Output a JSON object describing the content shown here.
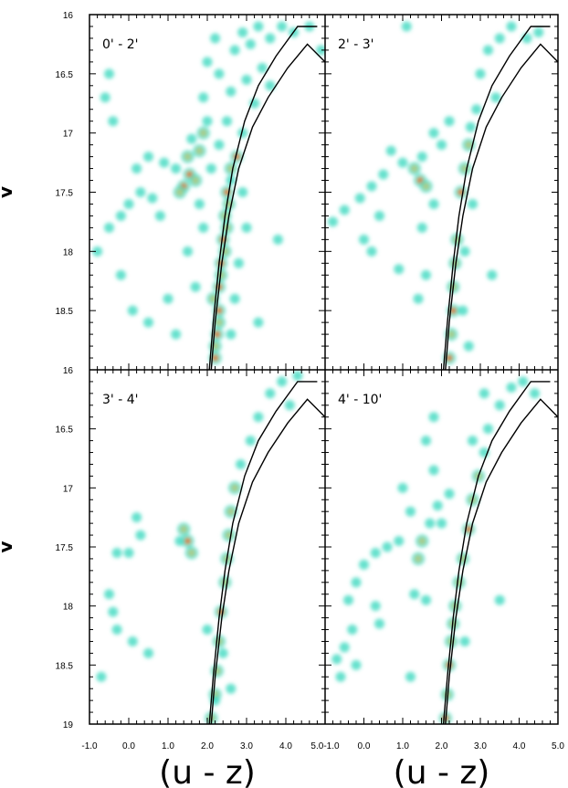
{
  "chart_data": {
    "type": "scatter",
    "subtype": "density color-magnitude diagram, 2x2 panels",
    "xlabel": "(u - z)",
    "ylabel": "v",
    "xlim": [
      -1.0,
      5.0
    ],
    "ylim": [
      19.0,
      16.0
    ],
    "x_ticks": [
      "-1.0",
      "0.0",
      "1.0",
      "2.0",
      "3.0",
      "4.0",
      "5.0"
    ],
    "x_ticks_right_first": "5.0-1.0",
    "y_ticks_top": [
      "16",
      "16.5",
      "17",
      "17.5",
      "18",
      "18.5"
    ],
    "y_ticks_bottom": [
      "16",
      "16.5",
      "17",
      "17.5",
      "18",
      "18.5",
      "19"
    ],
    "colors": {
      "low_density": "#3fd9c0",
      "mid_density": "#b7c87a",
      "high_density": "#e0641f",
      "isochrone": "#000000"
    },
    "isochrones": [
      {
        "points": [
          [
            2.05,
            19.0
          ],
          [
            2.15,
            18.6
          ],
          [
            2.3,
            18.1
          ],
          [
            2.45,
            17.7
          ],
          [
            2.65,
            17.3
          ],
          [
            2.95,
            16.9
          ],
          [
            3.3,
            16.6
          ],
          [
            3.75,
            16.35
          ],
          [
            4.3,
            16.1
          ],
          [
            4.8,
            16.1
          ]
        ]
      },
      {
        "points": [
          [
            2.1,
            19.0
          ],
          [
            2.2,
            18.6
          ],
          [
            2.37,
            18.1
          ],
          [
            2.55,
            17.7
          ],
          [
            2.8,
            17.3
          ],
          [
            3.15,
            16.95
          ],
          [
            3.55,
            16.7
          ],
          [
            4.05,
            16.45
          ],
          [
            4.55,
            16.25
          ],
          [
            5.0,
            16.4
          ]
        ]
      }
    ],
    "panels": [
      {
        "label": "0' - 2'",
        "points": [
          [
            2.2,
            18.9,
            3
          ],
          [
            2.25,
            18.7,
            3
          ],
          [
            2.3,
            18.5,
            3
          ],
          [
            2.3,
            18.3,
            3
          ],
          [
            2.35,
            18.1,
            3
          ],
          [
            2.4,
            17.9,
            3
          ],
          [
            2.45,
            17.7,
            2
          ],
          [
            2.5,
            17.5,
            3
          ],
          [
            2.6,
            17.3,
            2
          ],
          [
            2.75,
            17.2,
            3
          ],
          [
            2.2,
            18.8,
            2
          ],
          [
            2.3,
            18.6,
            2
          ],
          [
            2.15,
            18.4,
            2
          ],
          [
            2.35,
            18.2,
            2
          ],
          [
            2.45,
            18.0,
            2
          ],
          [
            2.5,
            17.8,
            2
          ],
          [
            2.55,
            17.6,
            2
          ],
          [
            2.6,
            17.4,
            1
          ],
          [
            1.4,
            17.45,
            3
          ],
          [
            1.55,
            17.35,
            3
          ],
          [
            1.7,
            17.4,
            2
          ],
          [
            1.3,
            17.5,
            2
          ],
          [
            1.5,
            17.2,
            2
          ],
          [
            1.8,
            17.15,
            2
          ],
          [
            1.9,
            17.0,
            2
          ],
          [
            2.0,
            16.9,
            1
          ],
          [
            1.6,
            17.05,
            1
          ],
          [
            1.2,
            17.3,
            1
          ],
          [
            0.2,
            17.3,
            1
          ],
          [
            0.3,
            17.5,
            1
          ],
          [
            0.0,
            17.6,
            1
          ],
          [
            -0.2,
            17.7,
            1
          ],
          [
            -0.5,
            17.8,
            1
          ],
          [
            -0.8,
            18.0,
            1
          ],
          [
            0.5,
            17.2,
            1
          ],
          [
            0.8,
            17.7,
            1
          ],
          [
            0.6,
            17.55,
            1
          ],
          [
            0.9,
            17.25,
            1
          ],
          [
            -0.2,
            18.2,
            1
          ],
          [
            0.1,
            18.5,
            1
          ],
          [
            0.5,
            18.6,
            1
          ],
          [
            1.2,
            18.7,
            1
          ],
          [
            1.0,
            18.4,
            1
          ],
          [
            1.5,
            18.0,
            1
          ],
          [
            1.7,
            18.3,
            1
          ],
          [
            1.9,
            17.8,
            1
          ],
          [
            1.8,
            17.6,
            1
          ],
          [
            2.7,
            16.3,
            1
          ],
          [
            2.9,
            16.15,
            1
          ],
          [
            3.1,
            16.25,
            1
          ],
          [
            3.3,
            16.1,
            1
          ],
          [
            3.6,
            16.2,
            1
          ],
          [
            3.9,
            16.1,
            1
          ],
          [
            4.2,
            16.15,
            1
          ],
          [
            4.6,
            16.1,
            1
          ],
          [
            4.9,
            16.3,
            1
          ],
          [
            3.4,
            16.45,
            1
          ],
          [
            3.0,
            16.55,
            1
          ],
          [
            2.6,
            16.65,
            1
          ],
          [
            2.3,
            16.5,
            1
          ],
          [
            2.0,
            16.4,
            1
          ],
          [
            2.2,
            16.2,
            1
          ],
          [
            1.9,
            16.7,
            1
          ],
          [
            2.5,
            16.9,
            1
          ],
          [
            3.2,
            16.75,
            1
          ],
          [
            3.6,
            16.6,
            1
          ],
          [
            2.9,
            17.0,
            1
          ],
          [
            2.3,
            17.1,
            1
          ],
          [
            2.1,
            17.3,
            1
          ],
          [
            2.9,
            17.5,
            1
          ],
          [
            3.0,
            17.8,
            1
          ],
          [
            2.8,
            18.1,
            1
          ],
          [
            2.7,
            18.4,
            1
          ],
          [
            2.6,
            18.7,
            1
          ],
          [
            -0.5,
            16.5,
            1
          ],
          [
            -0.6,
            16.7,
            1
          ],
          [
            -0.4,
            16.9,
            1
          ],
          [
            3.8,
            17.9,
            1
          ],
          [
            3.3,
            18.6,
            1
          ]
        ]
      },
      {
        "label": "2' - 3'",
        "points": [
          [
            2.2,
            18.9,
            3
          ],
          [
            2.25,
            18.7,
            2
          ],
          [
            2.3,
            18.5,
            3
          ],
          [
            2.3,
            18.3,
            2
          ],
          [
            2.35,
            18.1,
            2
          ],
          [
            2.4,
            17.9,
            2
          ],
          [
            2.5,
            17.5,
            3
          ],
          [
            2.6,
            17.3,
            2
          ],
          [
            2.7,
            17.1,
            2
          ],
          [
            2.75,
            16.95,
            1
          ],
          [
            1.45,
            17.4,
            3
          ],
          [
            1.6,
            17.45,
            2
          ],
          [
            1.3,
            17.3,
            2
          ],
          [
            1.5,
            17.2,
            1
          ],
          [
            1.0,
            17.25,
            1
          ],
          [
            0.7,
            17.15,
            1
          ],
          [
            0.5,
            17.35,
            1
          ],
          [
            0.2,
            17.45,
            1
          ],
          [
            -0.1,
            17.55,
            1
          ],
          [
            -0.5,
            17.65,
            1
          ],
          [
            -0.8,
            17.75,
            1
          ],
          [
            0.0,
            17.9,
            1
          ],
          [
            0.2,
            18.0,
            1
          ],
          [
            0.4,
            17.7,
            1
          ],
          [
            0.9,
            18.15,
            1
          ],
          [
            1.4,
            18.4,
            1
          ],
          [
            1.6,
            18.2,
            1
          ],
          [
            1.8,
            17.6,
            1
          ],
          [
            1.5,
            17.8,
            1
          ],
          [
            3.0,
            16.5,
            1
          ],
          [
            3.2,
            16.3,
            1
          ],
          [
            3.5,
            16.2,
            1
          ],
          [
            3.8,
            16.1,
            1
          ],
          [
            4.2,
            16.2,
            1
          ],
          [
            4.5,
            16.15,
            1
          ],
          [
            2.9,
            16.8,
            1
          ],
          [
            3.4,
            16.7,
            1
          ],
          [
            2.2,
            16.9,
            1
          ],
          [
            2.0,
            17.1,
            1
          ],
          [
            1.8,
            17.0,
            1
          ],
          [
            2.8,
            17.6,
            1
          ],
          [
            2.6,
            18.0,
            1
          ],
          [
            2.55,
            18.5,
            1
          ],
          [
            2.7,
            18.8,
            1
          ],
          [
            3.3,
            18.2,
            1
          ],
          [
            1.1,
            16.1,
            1
          ]
        ]
      },
      {
        "label": "3' - 4'",
        "points": [
          [
            2.1,
            18.95,
            2
          ],
          [
            2.2,
            18.75,
            2
          ],
          [
            2.25,
            18.55,
            2
          ],
          [
            2.3,
            18.3,
            2
          ],
          [
            2.35,
            18.05,
            3
          ],
          [
            2.45,
            17.8,
            2
          ],
          [
            2.5,
            17.6,
            2
          ],
          [
            2.55,
            17.4,
            2
          ],
          [
            2.6,
            17.2,
            2
          ],
          [
            2.7,
            17.0,
            2
          ],
          [
            2.85,
            16.8,
            1
          ],
          [
            1.5,
            17.45,
            3
          ],
          [
            1.4,
            17.35,
            2
          ],
          [
            1.6,
            17.55,
            2
          ],
          [
            1.3,
            17.45,
            1
          ],
          [
            0.2,
            17.25,
            1
          ],
          [
            0.3,
            17.4,
            1
          ],
          [
            0.0,
            17.55,
            1
          ],
          [
            -0.3,
            17.55,
            1
          ],
          [
            -0.5,
            17.9,
            1
          ],
          [
            -0.4,
            18.05,
            1
          ],
          [
            -0.3,
            18.2,
            1
          ],
          [
            0.1,
            18.3,
            1
          ],
          [
            0.5,
            18.4,
            1
          ],
          [
            -0.7,
            18.6,
            1
          ],
          [
            3.1,
            16.6,
            1
          ],
          [
            3.3,
            16.4,
            1
          ],
          [
            3.6,
            16.2,
            1
          ],
          [
            3.9,
            16.1,
            1
          ],
          [
            4.3,
            16.05,
            1
          ],
          [
            4.1,
            16.3,
            1
          ],
          [
            2.4,
            18.4,
            1
          ],
          [
            2.6,
            18.7,
            1
          ],
          [
            2.0,
            18.2,
            1
          ],
          [
            2.2,
            18.8,
            1
          ]
        ]
      },
      {
        "label": "4' - 10'",
        "points": [
          [
            2.1,
            18.95,
            3
          ],
          [
            2.15,
            18.75,
            2
          ],
          [
            2.2,
            18.5,
            3
          ],
          [
            2.25,
            18.3,
            2
          ],
          [
            2.3,
            18.15,
            2
          ],
          [
            2.35,
            18.0,
            2
          ],
          [
            2.45,
            17.8,
            2
          ],
          [
            2.55,
            17.6,
            2
          ],
          [
            2.7,
            17.35,
            3
          ],
          [
            2.8,
            17.1,
            2
          ],
          [
            2.95,
            16.9,
            2
          ],
          [
            3.1,
            16.7,
            1
          ],
          [
            1.5,
            17.45,
            2
          ],
          [
            1.4,
            17.6,
            2
          ],
          [
            1.7,
            17.3,
            1
          ],
          [
            1.9,
            17.15,
            1
          ],
          [
            1.2,
            17.2,
            1
          ],
          [
            1.0,
            17.0,
            1
          ],
          [
            1.8,
            16.85,
            1
          ],
          [
            2.0,
            17.3,
            1
          ],
          [
            2.2,
            17.05,
            1
          ],
          [
            1.6,
            16.6,
            1
          ],
          [
            0.9,
            17.45,
            1
          ],
          [
            0.6,
            17.5,
            1
          ],
          [
            0.3,
            17.55,
            1
          ],
          [
            0.0,
            17.65,
            1
          ],
          [
            -0.2,
            17.8,
            1
          ],
          [
            -0.4,
            17.95,
            1
          ],
          [
            -0.3,
            18.2,
            1
          ],
          [
            -0.5,
            18.35,
            1
          ],
          [
            -0.7,
            18.45,
            1
          ],
          [
            -0.6,
            18.6,
            1
          ],
          [
            -0.2,
            18.5,
            1
          ],
          [
            0.3,
            18.0,
            1
          ],
          [
            0.4,
            18.15,
            1
          ],
          [
            1.2,
            18.6,
            1
          ],
          [
            1.3,
            17.9,
            1
          ],
          [
            1.6,
            17.95,
            1
          ],
          [
            3.2,
            16.5,
            1
          ],
          [
            3.5,
            16.3,
            1
          ],
          [
            3.8,
            16.15,
            1
          ],
          [
            4.1,
            16.1,
            1
          ],
          [
            4.4,
            16.2,
            1
          ],
          [
            2.8,
            16.6,
            1
          ],
          [
            3.1,
            16.2,
            1
          ],
          [
            1.8,
            16.4,
            1
          ],
          [
            3.5,
            17.95,
            1
          ],
          [
            2.6,
            18.3,
            1
          ]
        ]
      }
    ]
  }
}
